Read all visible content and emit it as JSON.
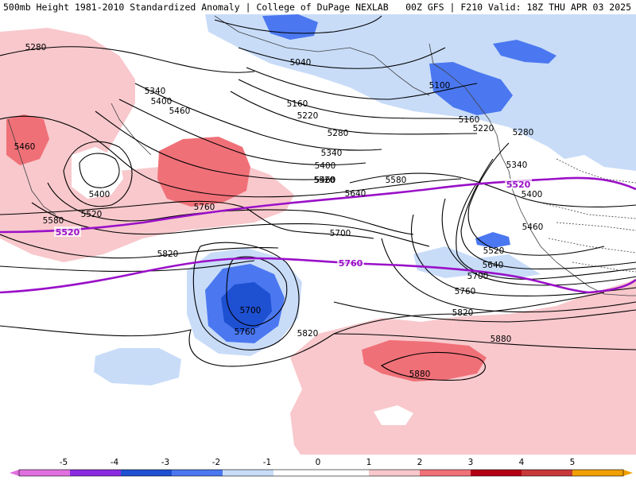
{
  "header": {
    "left": "500mb Height 1981-2010 Standardized Anomaly | College of DuPage NEXLAB",
    "right": "00Z GFS | F210 Valid: 18Z THU APR 03 2025"
  },
  "colors": {
    "neg5": "#e070e0",
    "neg4": "#8a2be2",
    "neg3": "#1e50d2",
    "neg2": "#4b78f0",
    "neg1": "#c8dcf8",
    "zero": "#ffffff",
    "pos1": "#f8c8cc",
    "pos2": "#f07078",
    "pos3": "#c83a3a",
    "pos4": "#b40014",
    "pos5": "#f0a000",
    "contour": "#000000",
    "highlight": "#9a10c8",
    "coast": "#404040"
  },
  "colorbar": {
    "ticks": [
      "-5",
      "-4",
      "-3",
      "-2",
      "-1",
      "0",
      "1",
      "2",
      "3",
      "4",
      "5"
    ]
  },
  "contour_labels": [
    "5280",
    "5040",
    "5100",
    "5160",
    "5220",
    "5280",
    "5340",
    "5400",
    "5460",
    "5340",
    "5400",
    "5460",
    "5400",
    "5520",
    "5580",
    "5460",
    "5520",
    "5580",
    "5640",
    "5700",
    "5820",
    "5760",
    "5700",
    "5760",
    "5820",
    "5880",
    "5880",
    "5160",
    "5220",
    "5280",
    "5340",
    "5400",
    "5460",
    "5520",
    "5640",
    "5700",
    "5760",
    "5820"
  ],
  "highlight_labels": [
    "5520",
    "5520",
    "5760"
  ]
}
